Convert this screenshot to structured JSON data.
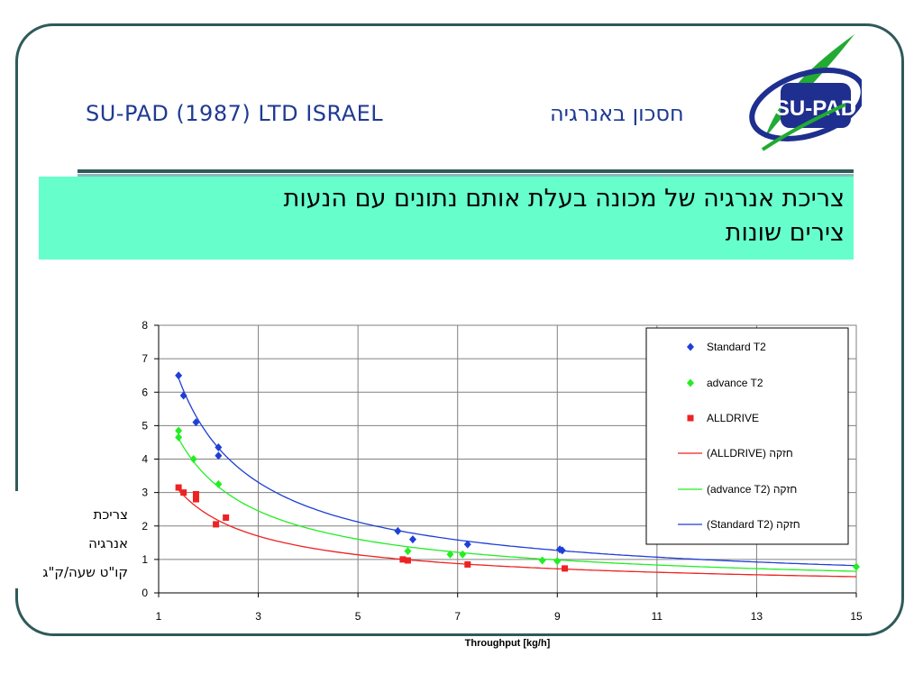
{
  "header": {
    "company": "SU-PAD (1987) LTD ISRAEL",
    "title_hebrew": "חסכון באנרגיה",
    "logo_text": "SU-PAD"
  },
  "banner": {
    "line1": "צריכת אנרגיה של מכונה בעלת אותם נתונים  עם הנעות",
    "line2": "צירים שונות"
  },
  "y_axis_label": {
    "line1": "צריכת",
    "line2": "אנרגיה",
    "line3": "קו\"ט שעה/ק\"ג"
  },
  "colors": {
    "frame": "#2e5a5a",
    "banner": "#66ffcc",
    "title_text": "#1f3a93",
    "standard": "#1f3fd6",
    "advance": "#22ee22",
    "alldrive": "#ee2222"
  },
  "chart_data": {
    "type": "scatter",
    "xlabel": "Throughput [kg/h]",
    "ylabel": "",
    "xlim": [
      1,
      15
    ],
    "ylim": [
      0,
      8
    ],
    "x_ticks": [
      "1",
      "3",
      "5",
      "7",
      "9",
      "11",
      "13",
      "15"
    ],
    "y_ticks": [
      "0",
      "1",
      "2",
      "3",
      "4",
      "5",
      "6",
      "7",
      "8"
    ],
    "grid": true,
    "legend_position": "top-right",
    "series": [
      {
        "name": "Standard T2",
        "marker": "diamond",
        "color": "#1f3fd6",
        "points": [
          [
            1.4,
            6.5
          ],
          [
            1.5,
            5.9
          ],
          [
            1.75,
            5.1
          ],
          [
            2.2,
            4.35
          ],
          [
            2.2,
            4.1
          ],
          [
            5.8,
            1.85
          ],
          [
            6.1,
            1.6
          ],
          [
            7.2,
            1.45
          ],
          [
            9.05,
            1.3
          ],
          [
            9.1,
            1.27
          ]
        ]
      },
      {
        "name": "advance T2",
        "marker": "diamond",
        "color": "#22ee22",
        "points": [
          [
            1.4,
            4.85
          ],
          [
            1.4,
            4.65
          ],
          [
            1.7,
            4.0
          ],
          [
            2.2,
            3.25
          ],
          [
            6.0,
            1.25
          ],
          [
            6.85,
            1.15
          ],
          [
            7.1,
            1.15
          ],
          [
            8.7,
            0.97
          ],
          [
            9.0,
            0.95
          ],
          [
            15.0,
            0.78
          ]
        ]
      },
      {
        "name": "ALLDRIVE",
        "marker": "square",
        "color": "#ee2222",
        "points": [
          [
            1.4,
            3.15
          ],
          [
            1.5,
            3.0
          ],
          [
            1.75,
            2.95
          ],
          [
            1.75,
            2.8
          ],
          [
            2.15,
            2.05
          ],
          [
            2.35,
            2.25
          ],
          [
            5.9,
            1.0
          ],
          [
            6.0,
            0.97
          ],
          [
            7.2,
            0.85
          ],
          [
            9.15,
            0.73
          ]
        ]
      },
      {
        "name": "(ALLDRIVE) חזקה",
        "type": "power-trendline",
        "color": "#ee2222",
        "a": 4.0,
        "b": -0.78
      },
      {
        "name": "(advance T2) חזקה",
        "type": "power-trendline",
        "color": "#22ee22",
        "a": 6.1,
        "b": -0.83
      },
      {
        "name": "(Standard T2) חזקה",
        "type": "power-trendline",
        "color": "#1f3fd6",
        "a": 8.6,
        "b": -0.87
      }
    ]
  }
}
